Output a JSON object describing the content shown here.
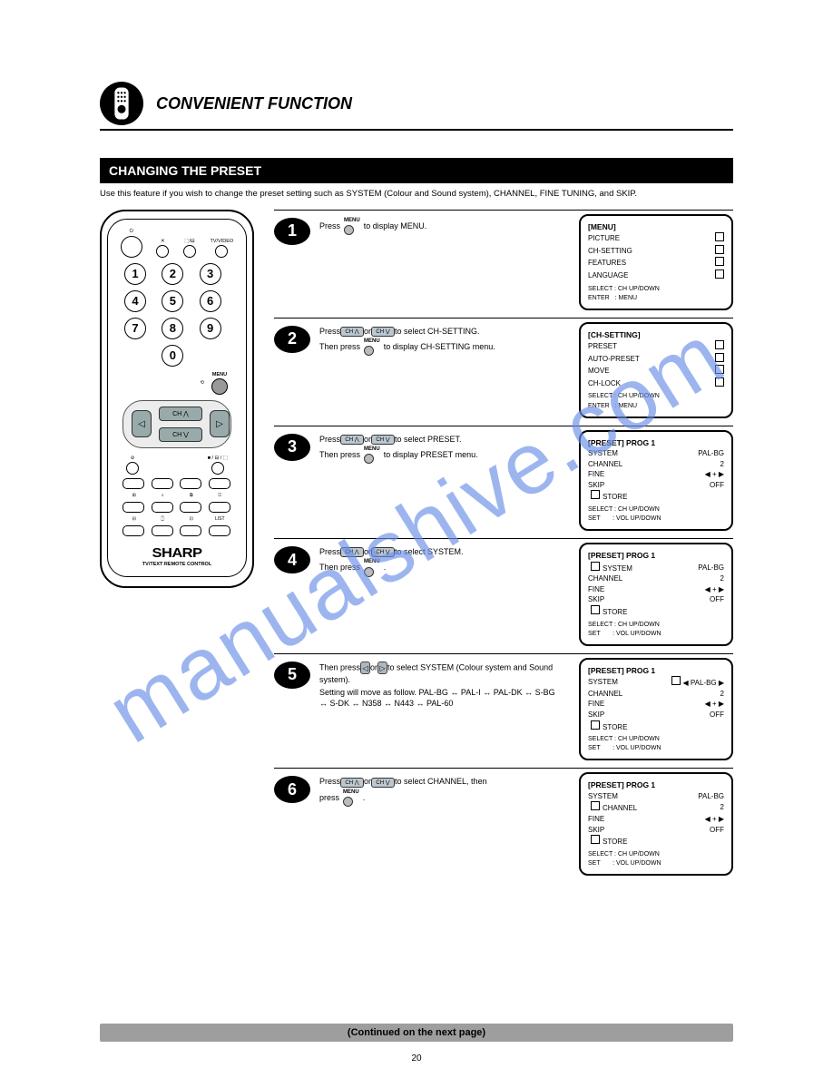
{
  "watermark": "manualshive.com",
  "header": {
    "title": "CONVENIENT FUNCTION"
  },
  "section_bar": "CHANGING THE PRESET",
  "intro": "Use this feature if you wish to change the preset setting such as SYSTEM (Colour and Sound system), CHANNEL, FINE TUNING, and SKIP.",
  "remote": {
    "top_labels": [
      "",
      "⏻",
      "⬚/⊟",
      "TV/VIDEO"
    ],
    "numbers": [
      "1",
      "2",
      "3",
      "4",
      "5",
      "6",
      "7",
      "8",
      "9",
      "",
      "0",
      ""
    ],
    "mute_label": "⏻",
    "menu_label": "MENU",
    "zero_right_label": "⟲",
    "nav": {
      "ch_up": "CH ⋀",
      "ch_down": "CH ⋁",
      "left": "◁",
      "right": "▷"
    },
    "under_left": "⊘",
    "under_right": "■ / ⊟ / ⬚",
    "txt_row1": [
      "",
      "",
      "",
      ""
    ],
    "txt_row2": [
      "⊞",
      "⌕",
      "⧉",
      "⎋"
    ],
    "txt_row3": [
      "⊟",
      "⌚",
      "⊡",
      "LIST"
    ],
    "brand": "SHARP",
    "brand_sub": "TV/TEXT REMOTE CONTROL"
  },
  "steps": [
    {
      "n": "1",
      "body": "Press          to display MENU.",
      "note": "",
      "icons": [
        "menu"
      ],
      "screen": {
        "title": "[MENU]",
        "rows": [
          {
            "l": "PICTURE",
            "box": true
          },
          {
            "l": "CH-SETTING",
            "box": true
          },
          {
            "l": "FEATURES",
            "box": true
          },
          {
            "l": "LANGUAGE",
            "box": true
          }
        ],
        "footer": "SELECT : CH UP/DOWN\nENTER   : MENU"
      }
    },
    {
      "n": "2",
      "body": "Press           or           to select CH-SETTING.",
      "note": "Then  press           to display CH-SETTING menu.",
      "icons": [
        "chup",
        "chdn",
        "menu"
      ],
      "screen": {
        "title": "[CH-SETTING]",
        "rows": [
          {
            "l": "PRESET",
            "box": true
          },
          {
            "l": "AUTO-PRESET",
            "box": true
          },
          {
            "l": "MOVE",
            "box": true
          },
          {
            "l": "CH-LOCK",
            "box": true
          }
        ],
        "footer": "SELECT : CH UP/DOWN\nENTER   : MENU"
      }
    },
    {
      "n": "3",
      "body": "Press           or           to select PRESET.",
      "note": "Then press           to display PRESET menu.",
      "icons": [
        "chup",
        "chdn",
        "menu"
      ],
      "screen": {
        "title": "[PRESET]      PROG    1",
        "rows": [
          {
            "l": "SYSTEM",
            "r": "PAL-BG"
          },
          {
            "l": "CHANNEL",
            "r": "  2"
          },
          {
            "l": "FINE",
            "r": "◀ + ▶"
          },
          {
            "l": "SKIP",
            "r": "OFF"
          }
        ],
        "box_row": "STORE",
        "footer": "SELECT : CH UP/DOWN\nSET       : VOL UP/DOWN"
      }
    },
    {
      "n": "4",
      "body": "Press           or           to select SYSTEM.",
      "note": "Then press           .",
      "icons": [
        "chup",
        "chdn",
        "menu"
      ],
      "screen": {
        "title": "[PRESET]      PROG    1",
        "rows": [
          {
            "l": "SYSTEM",
            "boxsel": true,
            "r": "PAL-BG"
          },
          {
            "l": "CHANNEL",
            "r": "  2"
          },
          {
            "l": "FINE",
            "r": "◀ + ▶"
          },
          {
            "l": "SKIP",
            "r": "OFF"
          }
        ],
        "box_row": "STORE",
        "footer": "SELECT : CH UP/DOWN\nSET       : VOL UP/DOWN"
      }
    },
    {
      "n": "5",
      "body": "Then press         or         to select SYSTEM (Colour system and Sound system).",
      "note": "Setting will move as follow.\nPAL-BG ↔ PAL-I ↔ PAL-DK ↔ S-BG ↔ S-DK ↔ N358 ↔ N443 ↔ PAL-60",
      "icons": [
        "left",
        "right"
      ],
      "screen": {
        "title": "[PRESET]      PROG    1",
        "rows": [
          {
            "l": "SYSTEM",
            "r": "◀ PAL-BG ▶",
            "boxr": true
          },
          {
            "l": "CHANNEL",
            "r": "  2"
          },
          {
            "l": "FINE",
            "r": "◀ + ▶"
          },
          {
            "l": "SKIP",
            "r": "OFF"
          }
        ],
        "box_row": "STORE",
        "footer": "SELECT : CH UP/DOWN\nSET       : VOL UP/DOWN"
      }
    },
    {
      "n": "6",
      "body": "Press           or           to select CHANNEL, then",
      "note": "press           .",
      "icons": [
        "chup",
        "chdn",
        "menu"
      ],
      "screen": {
        "title": "[PRESET]      PROG    1",
        "rows": [
          {
            "l": "SYSTEM",
            "r": "PAL-BG"
          },
          {
            "l": "CHANNEL",
            "boxsel": true,
            "r": "  2"
          },
          {
            "l": "FINE",
            "r": "◀ + ▶"
          },
          {
            "l": "SKIP",
            "r": "OFF"
          }
        ],
        "box_row": "STORE",
        "footer": "SELECT : CH UP/DOWN\nSET       : VOL UP/DOWN"
      }
    }
  ],
  "footer_bar": "(Continued on the next page)",
  "page_number": "20"
}
